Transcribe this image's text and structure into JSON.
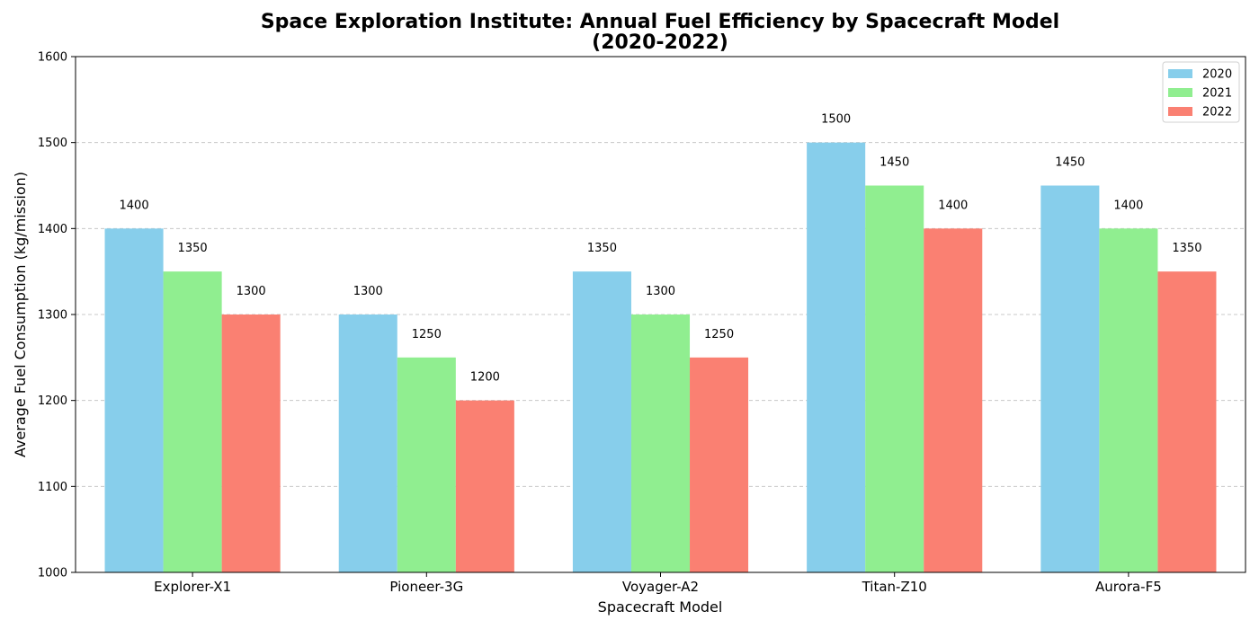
{
  "chart_data": {
    "type": "bar",
    "title": "Space Exploration Institute: Annual Fuel Efficiency by Spacecraft Model",
    "subtitle": "(2020-2022)",
    "xlabel": "Spacecraft Model",
    "ylabel": "Average Fuel Consumption (kg/mission)",
    "categories": [
      "Explorer-X1",
      "Pioneer-3G",
      "Voyager-A2",
      "Titan-Z10",
      "Aurora-F5"
    ],
    "series": [
      {
        "name": "2020",
        "color": "#87CEEB",
        "values": [
          1400,
          1300,
          1350,
          1500,
          1450
        ]
      },
      {
        "name": "2021",
        "color": "#90EE90",
        "values": [
          1350,
          1250,
          1300,
          1450,
          1400
        ]
      },
      {
        "name": "2022",
        "color": "#FA8072",
        "values": [
          1300,
          1200,
          1250,
          1400,
          1350
        ]
      }
    ],
    "ylim": [
      1000,
      1600
    ],
    "yticks": [
      1000,
      1100,
      1200,
      1300,
      1400,
      1500,
      1600
    ],
    "grid": "y-dashed",
    "legend_position": "top-right"
  }
}
